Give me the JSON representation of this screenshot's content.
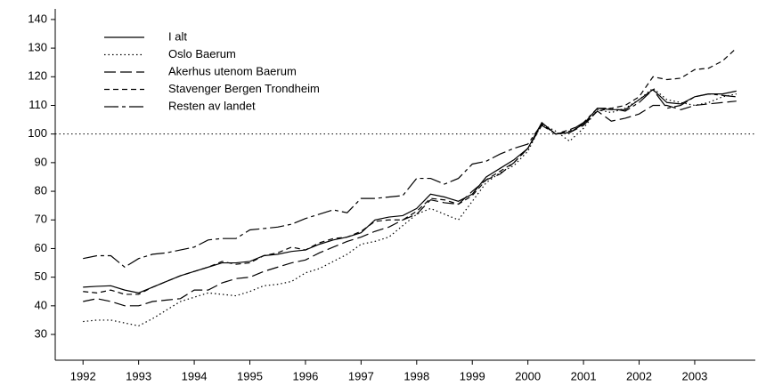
{
  "chart_data": {
    "type": "line",
    "x": [
      1992,
      1992.25,
      1992.5,
      1992.75,
      1993,
      1993.25,
      1993.5,
      1993.75,
      1994,
      1994.25,
      1994.5,
      1994.75,
      1995,
      1995.25,
      1995.5,
      1995.75,
      1996,
      1996.25,
      1996.5,
      1996.75,
      1997,
      1997.25,
      1997.5,
      1997.75,
      1998,
      1998.25,
      1998.5,
      1998.75,
      1999,
      1999.25,
      1999.5,
      1999.75,
      2000,
      2000.25,
      2000.5,
      2000.75,
      2001,
      2001.25,
      2001.5,
      2001.75,
      2002,
      2002.25,
      2002.5,
      2002.75,
      2003,
      2003.25,
      2003.5,
      2003.75
    ],
    "series": [
      {
        "name": "I alt",
        "color": "#000000",
        "linestyle": "solid",
        "values": [
          46.5,
          46.8,
          47,
          45.5,
          44.5,
          46.5,
          48.5,
          50.5,
          52,
          53.5,
          55,
          55,
          55.5,
          57.5,
          58,
          59,
          59.5,
          61.5,
          63,
          64,
          65.5,
          70,
          71,
          71.5,
          74,
          79,
          78,
          76.5,
          79,
          85,
          88,
          91,
          95,
          104,
          100,
          100.5,
          103.5,
          109,
          108.5,
          108.5,
          112,
          115.5,
          111,
          110.5,
          113,
          114,
          114,
          115
        ]
      },
      {
        "name": "Oslo Baerum",
        "color": "#000000",
        "linestyle": "dotted",
        "values": [
          34.5,
          35,
          35,
          34,
          33,
          35.5,
          38.5,
          41.5,
          43,
          44.5,
          44,
          43.5,
          45,
          47,
          47.5,
          48.5,
          51.5,
          53,
          55.5,
          58,
          61.5,
          62.5,
          64,
          68,
          72,
          74,
          72,
          70,
          76.5,
          83,
          86.5,
          89,
          94,
          103.5,
          101,
          97.5,
          102,
          108.5,
          107.5,
          109,
          112,
          116,
          112,
          111,
          110,
          111,
          113,
          114
        ]
      },
      {
        "name": "Akerhus utenom Baerum",
        "color": "#000000",
        "linestyle": "longdash",
        "values": [
          41.5,
          42.5,
          41.5,
          40,
          40,
          41.5,
          42,
          42.5,
          45.5,
          45.5,
          48,
          49.5,
          50,
          52,
          53.5,
          55,
          56,
          58.5,
          60.5,
          62.5,
          64,
          66,
          67.5,
          70,
          72,
          77,
          76,
          75.5,
          80,
          84,
          86,
          90,
          95,
          103,
          100,
          100.5,
          103,
          108,
          104.5,
          105.5,
          107,
          110,
          110,
          108.5,
          110,
          110.5,
          111,
          111.5
        ]
      },
      {
        "name": "Stavenger Bergen Trondheim",
        "color": "#000000",
        "linestyle": "dashed",
        "values": [
          45,
          44.5,
          45.5,
          44,
          44,
          46.5,
          48.5,
          50.5,
          52,
          53.5,
          55.5,
          54.5,
          55,
          57.5,
          58.5,
          60.5,
          59.5,
          62,
          63.5,
          64,
          66,
          69.5,
          70,
          70,
          73,
          77.5,
          77,
          75.5,
          78.5,
          84,
          87,
          90,
          95,
          103.5,
          100,
          101.5,
          103.5,
          108,
          109,
          110,
          113,
          120,
          119,
          119.5,
          122.5,
          123,
          125.5,
          130
        ]
      },
      {
        "name": "Resten av landet",
        "color": "#000000",
        "linestyle": "dashdot",
        "values": [
          56.5,
          57.5,
          57.5,
          53.5,
          56.5,
          58,
          58.5,
          59.5,
          60.5,
          63,
          63.5,
          63.5,
          66.5,
          67,
          67.5,
          68.5,
          70.5,
          72,
          73.5,
          72.5,
          77.5,
          77.5,
          78,
          78.5,
          84.5,
          84.5,
          82.5,
          84.5,
          89.5,
          90.5,
          93,
          95,
          96.5,
          103.5,
          100,
          101,
          104,
          109,
          109,
          108,
          111,
          115.5,
          109,
          110,
          113,
          114,
          113.5,
          113
        ]
      }
    ],
    "xlim": [
      1991.5,
      2004.09
    ],
    "xticks": [
      1992,
      1993,
      1994,
      1995,
      1996,
      1997,
      1998,
      1999,
      2000,
      2001,
      2002,
      2003
    ],
    "ylim": [
      21,
      143.7
    ],
    "yticks": [
      30,
      40,
      50,
      60,
      70,
      80,
      90,
      100,
      110,
      120,
      130,
      140
    ],
    "hline": 100,
    "legend": "top-left"
  }
}
